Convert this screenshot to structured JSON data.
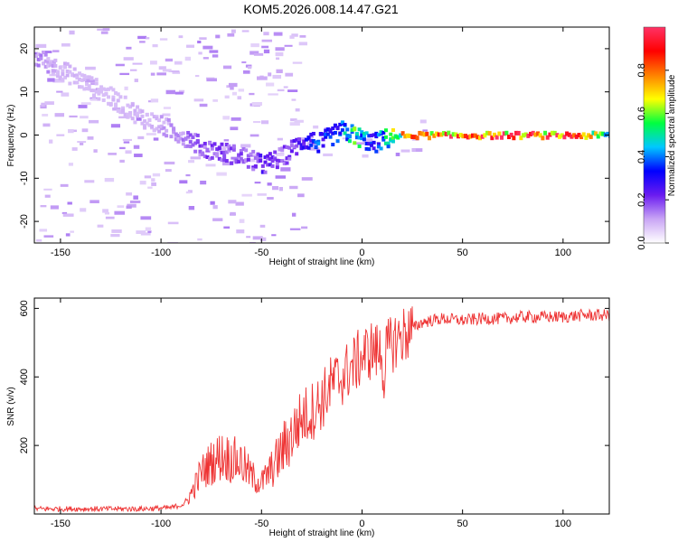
{
  "title": "KOM5.2026.008.14.47.G21",
  "chart_data": [
    {
      "type": "heatmap",
      "xlabel": "Height of straight line (km)",
      "ylabel": "Frequency (Hz)",
      "xlim": [
        -163,
        123
      ],
      "ylim": [
        -25,
        25
      ],
      "xticks": [
        -150,
        -100,
        -50,
        0,
        50,
        100
      ],
      "yticks": [
        -20,
        -10,
        0,
        10,
        20
      ],
      "colorbar": {
        "label": "Normalized spectral amplitude",
        "range": [
          0,
          1
        ],
        "ticks": [
          "0.0",
          "0.2",
          "0.4",
          "0.6",
          "0.8"
        ],
        "tick_values": [
          0,
          0.2,
          0.4,
          0.6,
          0.8
        ],
        "colors": [
          "#ffffff",
          "#c9a5f5",
          "#6a1bf0",
          "#0000ff",
          "#00c8ff",
          "#00ff40",
          "#ffff00",
          "#ff8000",
          "#ff0000",
          "#ff3366"
        ]
      },
      "ridge": {
        "x": [
          -163,
          -150,
          -130,
          -110,
          -90,
          -80,
          -70,
          -60,
          -50,
          -40,
          -32,
          -28,
          -22,
          -15,
          -10,
          -5,
          0,
          5,
          10,
          20,
          40,
          60,
          80,
          100,
          123
        ],
        "freq": [
          18,
          15,
          10,
          4,
          0,
          -3,
          -4,
          -5,
          -7,
          -5,
          -2,
          -1,
          -2,
          0,
          1,
          0,
          -1,
          -2,
          -1,
          0,
          0,
          0,
          0,
          0,
          0
        ],
        "amplitude": [
          0.15,
          0.1,
          0.08,
          0.1,
          0.15,
          0.2,
          0.2,
          0.2,
          0.25,
          0.2,
          0.25,
          0.3,
          0.4,
          0.35,
          0.5,
          0.6,
          0.5,
          0.3,
          0.5,
          0.8,
          0.95,
          0.95,
          0.95,
          0.95,
          0.6
        ]
      }
    },
    {
      "type": "line",
      "xlabel": "Height of straight line (km)",
      "ylabel": "SNR (v/v)",
      "xlim": [
        -163,
        123
      ],
      "ylim": [
        0,
        630
      ],
      "xticks": [
        -150,
        -100,
        -50,
        0,
        50,
        100
      ],
      "yticks": [
        200,
        400,
        600
      ],
      "color": "#ee3333",
      "series": [
        {
          "name": "SNR",
          "x": [
            -163,
            -150,
            -130,
            -110,
            -95,
            -88,
            -85,
            -80,
            -75,
            -70,
            -65,
            -60,
            -55,
            -50,
            -45,
            -40,
            -35,
            -30,
            -25,
            -20,
            -15,
            -10,
            -5,
            0,
            5,
            8,
            10,
            11,
            12,
            15,
            20,
            25,
            30,
            40,
            50,
            60,
            70,
            80,
            90,
            100,
            110,
            123
          ],
          "y": [
            15,
            15,
            15,
            15,
            18,
            30,
            60,
            120,
            150,
            170,
            160,
            150,
            110,
            90,
            130,
            180,
            230,
            280,
            300,
            330,
            380,
            400,
            430,
            460,
            480,
            470,
            480,
            330,
            470,
            500,
            520,
            540,
            560,
            570,
            565,
            570,
            570,
            575,
            575,
            575,
            580,
            580
          ]
        }
      ]
    }
  ]
}
